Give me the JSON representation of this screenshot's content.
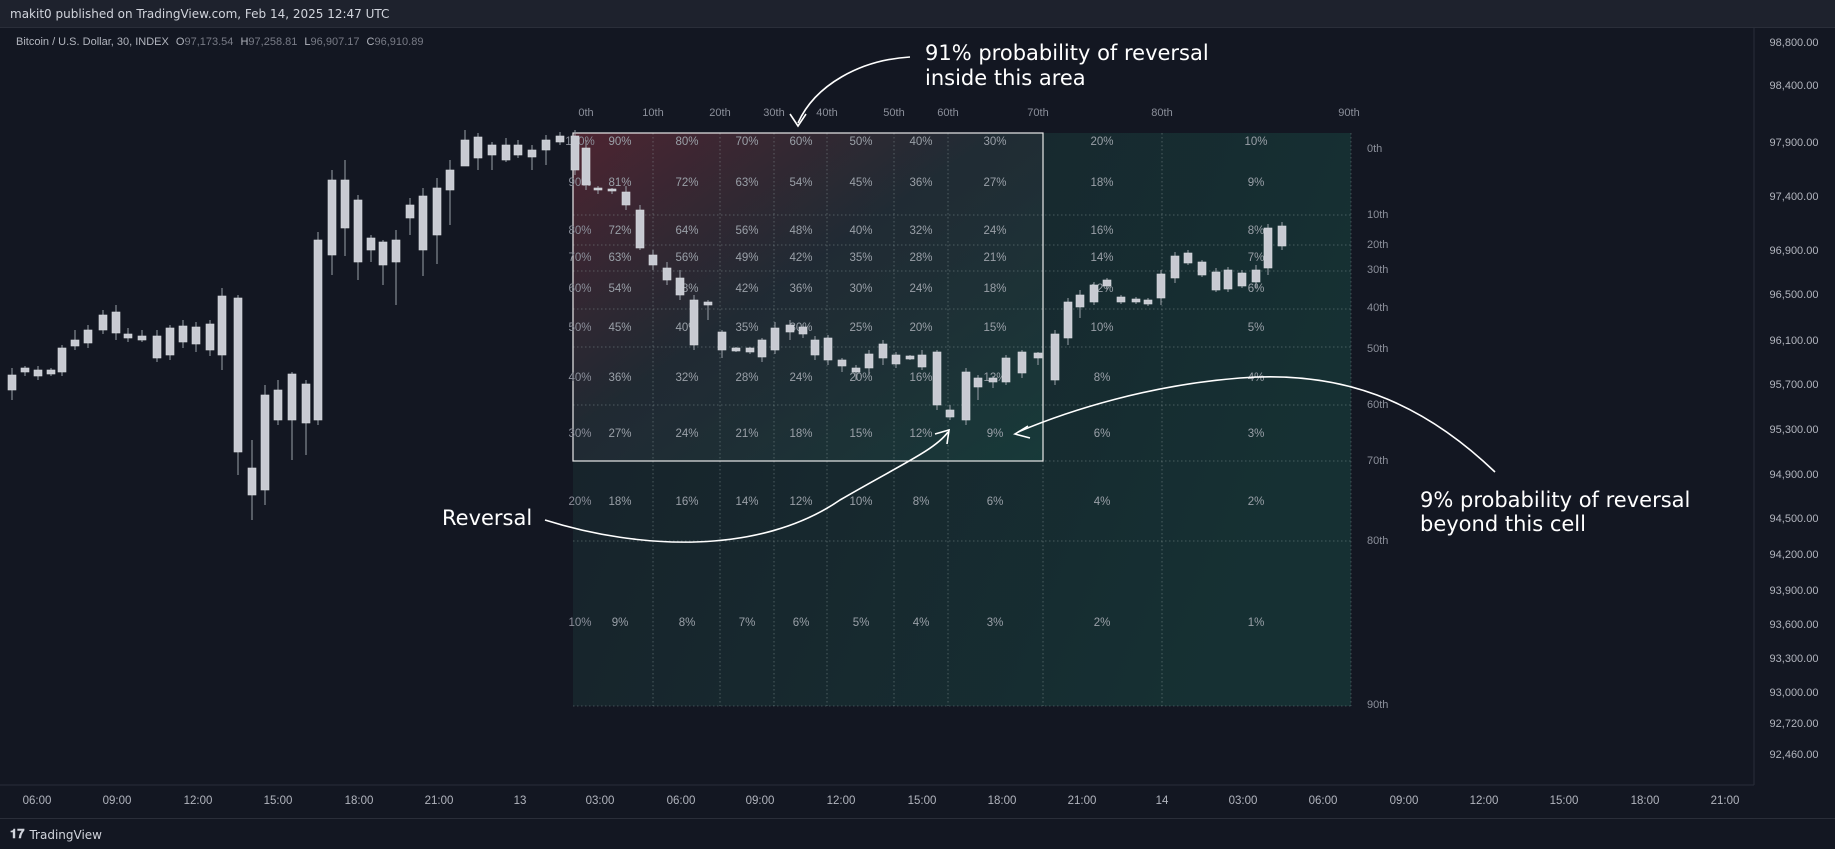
{
  "header": {
    "publisher": "makit0 published on TradingView.com, Feb 14, 2025 12:47 UTC"
  },
  "symbol": {
    "name": "Bitcoin / U.S. Dollar, 30, INDEX",
    "o_label": "O",
    "o": "97,173.54",
    "h_label": "H",
    "h": "97,258.81",
    "l_label": "L",
    "l": "96,907.17",
    "c_label": "C",
    "c": "96,910.89"
  },
  "price_axis": [
    "98,800.00",
    "98,400.00",
    "97,900.00",
    "97,400.00",
    "96,900.00",
    "96,500.00",
    "96,100.00",
    "95,700.00",
    "95,300.00",
    "94,900.00",
    "94,500.00",
    "94,200.00",
    "93,900.00",
    "93,600.00",
    "93,300.00",
    "93,000.00",
    "92,720.00",
    "92,460.00"
  ],
  "time_axis": [
    "06:00",
    "09:00",
    "12:00",
    "15:00",
    "18:00",
    "21:00",
    "13",
    "03:00",
    "06:00",
    "09:00",
    "12:00",
    "15:00",
    "18:00",
    "21:00",
    "14",
    "03:00",
    "06:00",
    "09:00",
    "12:00",
    "15:00",
    "18:00",
    "21:00"
  ],
  "grid": {
    "top_labels": [
      "0th",
      "10th",
      "20th",
      "30th",
      "40th",
      "50th",
      "60th",
      "70th",
      "80th",
      "90th"
    ],
    "right_labels": [
      "0th",
      "10th",
      "20th",
      "30th",
      "40th",
      "50th",
      "60th",
      "70th",
      "80th",
      "90th"
    ],
    "left_labels": [
      "100%",
      "90%",
      "80%",
      "70%",
      "60%",
      "50%",
      "40%",
      "30%",
      "20%",
      "10%"
    ],
    "cells": [
      [
        "90%",
        "80%",
        "70%",
        "60%",
        "50%",
        "40%",
        "30%",
        "20%",
        "10%"
      ],
      [
        "81%",
        "72%",
        "63%",
        "54%",
        "45%",
        "36%",
        "27%",
        "18%",
        "9%"
      ],
      [
        "72%",
        "64%",
        "56%",
        "48%",
        "40%",
        "32%",
        "24%",
        "16%",
        "8%"
      ],
      [
        "63%",
        "56%",
        "49%",
        "42%",
        "35%",
        "28%",
        "21%",
        "14%",
        "7%"
      ],
      [
        "54%",
        "48%",
        "42%",
        "36%",
        "30%",
        "24%",
        "18%",
        "12%",
        "6%"
      ],
      [
        "45%",
        "40%",
        "35%",
        "30%",
        "25%",
        "20%",
        "15%",
        "10%",
        "5%"
      ],
      [
        "36%",
        "32%",
        "28%",
        "24%",
        "20%",
        "16%",
        "12%",
        "8%",
        "4%"
      ],
      [
        "27%",
        "24%",
        "21%",
        "18%",
        "15%",
        "12%",
        "9%",
        "6%",
        "3%"
      ],
      [
        "18%",
        "16%",
        "14%",
        "12%",
        "10%",
        "8%",
        "6%",
        "4%",
        "2%"
      ],
      [
        "9%",
        "8%",
        "7%",
        "6%",
        "5%",
        "4%",
        "3%",
        "2%",
        "1%"
      ]
    ]
  },
  "annotations": {
    "top_line1": "91% probability of reversal",
    "top_line2": "inside this area",
    "reversal": "Reversal",
    "right_line1": "9% probability of reversal",
    "right_line2": "beyond this cell"
  },
  "brand": {
    "name": "TradingView"
  },
  "colors": {
    "background": "#131722",
    "grid_red": "#8a2a3a",
    "grid_green": "#1e4a46",
    "candle": "#c8cad2",
    "text": "#d1d4dc",
    "muted": "#8b8f9a"
  }
}
